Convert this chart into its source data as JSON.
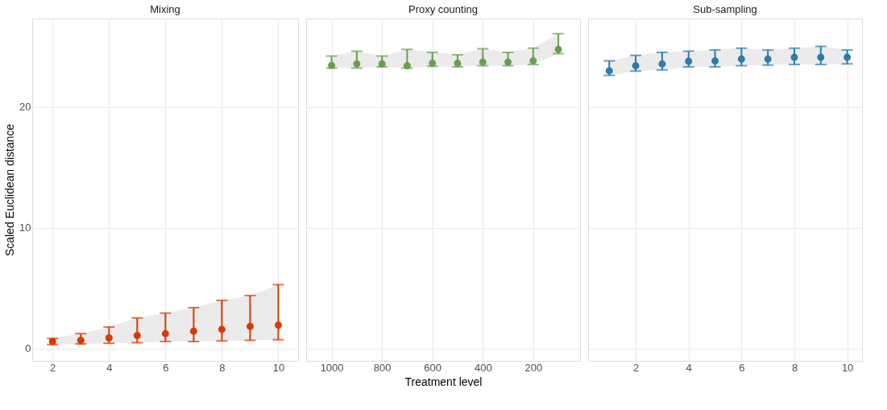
{
  "chart_data": [
    {
      "type": "scatter",
      "title": "Mixing",
      "ylabel": "Scaled Euclidean distance",
      "x": [
        2,
        3,
        4,
        5,
        6,
        7,
        8,
        9,
        10
      ],
      "xlim": [
        1.28,
        10.7
      ],
      "xticks": [
        2,
        4,
        6,
        8,
        10
      ],
      "ylim": [
        -1.0,
        27.3
      ],
      "yticks": [
        0,
        10,
        20
      ],
      "grid": true,
      "marker": "circle",
      "series": [
        {
          "color": "#d93a04",
          "values": [
            0.6,
            0.7,
            0.9,
            1.1,
            1.25,
            1.45,
            1.6,
            1.85,
            1.95
          ],
          "errors": [
            [
              0.35,
              0.85
            ],
            [
              0.4,
              1.25
            ],
            [
              0.45,
              1.8
            ],
            [
              0.5,
              2.55
            ],
            [
              0.6,
              2.95
            ],
            [
              0.6,
              3.4
            ],
            [
              0.65,
              4.0
            ],
            [
              0.7,
              4.4
            ],
            [
              0.75,
              5.3
            ]
          ],
          "lower": [
            0.35,
            0.4,
            0.45,
            0.5,
            0.6,
            0.6,
            0.65,
            0.7,
            0.75
          ],
          "upper": [
            0.85,
            1.25,
            1.8,
            2.55,
            2.95,
            3.4,
            4.0,
            4.4,
            5.3
          ]
        }
      ]
    },
    {
      "type": "scatter",
      "title": "Proxy counting",
      "xlabel": "Treatment level",
      "x": [
        1000,
        900,
        800,
        700,
        600,
        500,
        400,
        300,
        200,
        100
      ],
      "xlim": [
        1101,
        14
      ],
      "xticks": [
        1000,
        800,
        600,
        400,
        200
      ],
      "ylim": [
        -1.0,
        27.3
      ],
      "yticks": [
        0,
        10,
        20
      ],
      "tick_labels": "x",
      "grid": true,
      "marker": "circle",
      "series": [
        {
          "color": "#6a9e4f",
          "values": [
            23.43,
            23.55,
            23.55,
            23.4,
            23.6,
            23.6,
            23.7,
            23.7,
            23.8,
            24.75
          ],
          "errors": [
            [
              23.2,
              24.2
            ],
            [
              23.2,
              24.6
            ],
            [
              23.3,
              24.2
            ],
            [
              23.2,
              24.75
            ],
            [
              23.35,
              24.5
            ],
            [
              23.3,
              24.3
            ],
            [
              23.4,
              24.8
            ],
            [
              23.4,
              24.5
            ],
            [
              23.5,
              24.85
            ],
            [
              24.4,
              26.05
            ]
          ],
          "lower": [
            23.2,
            23.2,
            23.3,
            23.2,
            23.35,
            23.3,
            23.4,
            23.4,
            23.5,
            24.4
          ],
          "upper": [
            24.2,
            24.6,
            24.2,
            24.75,
            24.5,
            24.3,
            24.8,
            24.5,
            24.85,
            26.05
          ]
        }
      ]
    },
    {
      "type": "scatter",
      "title": "Sub-sampling",
      "x": [
        1,
        2,
        3,
        4,
        5,
        6,
        7,
        8,
        9,
        10
      ],
      "xlim": [
        0.2,
        10.56
      ],
      "xticks": [
        2,
        4,
        6,
        8,
        10
      ],
      "ylim": [
        -1.0,
        27.3
      ],
      "yticks": [
        0,
        10,
        20
      ],
      "tick_labels": "x",
      "grid": true,
      "marker": "circle",
      "series": [
        {
          "color": "#2b7bab",
          "values": [
            22.98,
            23.4,
            23.55,
            23.77,
            23.8,
            23.95,
            23.95,
            24.1,
            24.1,
            24.1
          ],
          "errors": [
            [
              22.6,
              23.8
            ],
            [
              22.95,
              24.25
            ],
            [
              23.05,
              24.5
            ],
            [
              23.3,
              24.6
            ],
            [
              23.3,
              24.7
            ],
            [
              23.4,
              24.85
            ],
            [
              23.45,
              24.7
            ],
            [
              23.5,
              24.85
            ],
            [
              23.5,
              25.0
            ],
            [
              23.55,
              24.7
            ]
          ],
          "lower": [
            22.6,
            22.95,
            23.05,
            23.3,
            23.3,
            23.4,
            23.45,
            23.5,
            23.5,
            23.55
          ],
          "upper": [
            23.8,
            24.25,
            24.5,
            24.6,
            24.7,
            24.85,
            24.7,
            24.85,
            25.0,
            24.7
          ]
        }
      ]
    }
  ]
}
